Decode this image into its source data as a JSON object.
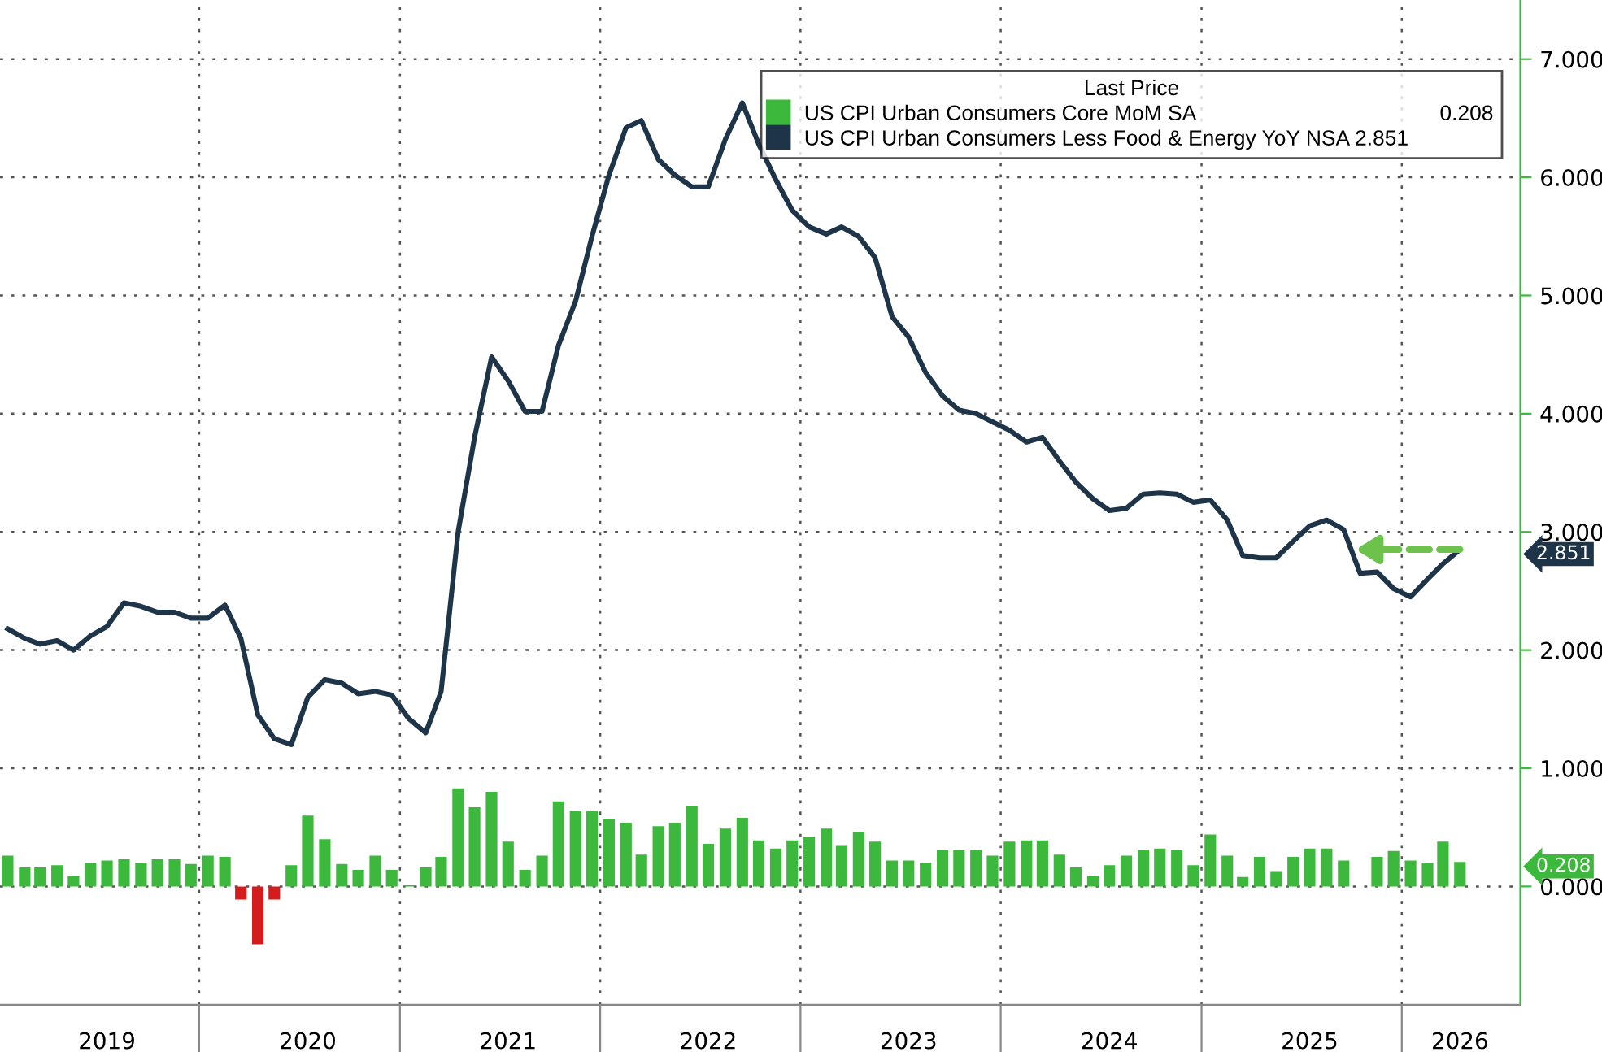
{
  "chart_data": {
    "type": "bar",
    "legend_title": "Last Price",
    "legend": "top right",
    "grid": true,
    "x": [
      "2019-01",
      "2019-02",
      "2019-03",
      "2019-04",
      "2019-05",
      "2019-06",
      "2019-07",
      "2019-08",
      "2019-09",
      "2019-10",
      "2019-11",
      "2019-12",
      "2020-01",
      "2020-02",
      "2020-03",
      "2020-04",
      "2020-05",
      "2020-06",
      "2020-07",
      "2020-08",
      "2020-09",
      "2020-10",
      "2020-11",
      "2020-12",
      "2021-01",
      "2021-02",
      "2021-03",
      "2021-04",
      "2021-05",
      "2021-06",
      "2021-07",
      "2021-08",
      "2021-09",
      "2021-10",
      "2021-11",
      "2021-12",
      "2022-01",
      "2022-02",
      "2022-03",
      "2022-04",
      "2022-05",
      "2022-06",
      "2022-07",
      "2022-08",
      "2022-09",
      "2022-10",
      "2022-11",
      "2022-12",
      "2023-01",
      "2023-02",
      "2023-03",
      "2023-04",
      "2023-05",
      "2023-06",
      "2023-07",
      "2023-08",
      "2023-09",
      "2023-10",
      "2023-11",
      "2023-12",
      "2024-01",
      "2024-02",
      "2024-03",
      "2024-04",
      "2024-05",
      "2024-06",
      "2024-07",
      "2024-08",
      "2024-09",
      "2024-10",
      "2024-11",
      "2024-12",
      "2025-01",
      "2025-02",
      "2025-03",
      "2025-04",
      "2025-05",
      "2025-06",
      "2025-07",
      "2025-08",
      "2025-09",
      "2025-10",
      "2025-11",
      "2025-12",
      "2026-01",
      "2026-02",
      "2026-03",
      "2026-04"
    ],
    "series": [
      {
        "name": "US CPI Urban Consumers Core MoM SA                                         0.208",
        "color": "#3cb83c",
        "values": [
          0.26,
          0.16,
          0.16,
          0.18,
          0.09,
          0.2,
          0.22,
          0.23,
          0.2,
          0.23,
          0.23,
          0.19,
          0.26,
          0.25,
          -0.11,
          -0.49,
          -0.11,
          0.18,
          0.6,
          0.4,
          0.19,
          0.14,
          0.26,
          0.14,
          0.01,
          0.16,
          0.25,
          0.83,
          0.67,
          0.8,
          0.38,
          0.14,
          0.26,
          0.72,
          0.64,
          0.64,
          0.57,
          0.54,
          0.27,
          0.51,
          0.54,
          0.68,
          0.36,
          0.49,
          0.58,
          0.39,
          0.32,
          0.39,
          0.42,
          0.49,
          0.35,
          0.46,
          0.38,
          0.22,
          0.22,
          0.2,
          0.31,
          0.31,
          0.31,
          0.26,
          0.38,
          0.39,
          0.39,
          0.27,
          0.16,
          0.09,
          0.18,
          0.26,
          0.31,
          0.32,
          0.31,
          0.18,
          0.44,
          0.26,
          0.08,
          0.25,
          0.13,
          0.25,
          0.32,
          0.32,
          0.22,
          null,
          0.25,
          0.3,
          0.22,
          0.2,
          0.38,
          0.208
        ],
        "colors": [
          "#3cb83c",
          "#3cb83c",
          "#3cb83c",
          "#3cb83c",
          "#3cb83c",
          "#3cb83c",
          "#3cb83c",
          "#3cb83c",
          "#3cb83c",
          "#3cb83c",
          "#3cb83c",
          "#3cb83c",
          "#3cb83c",
          "#3cb83c",
          "#d41c1c",
          "#d41c1c",
          "#d41c1c",
          "#3cb83c",
          "#3cb83c",
          "#3cb83c",
          "#3cb83c",
          "#3cb83c",
          "#3cb83c",
          "#3cb83c",
          "#3cb83c",
          "#3cb83c",
          "#3cb83c",
          "#3cb83c",
          "#3cb83c",
          "#3cb83c",
          "#3cb83c",
          "#3cb83c",
          "#3cb83c",
          "#3cb83c",
          "#3cb83c",
          "#3cb83c",
          "#3cb83c",
          "#3cb83c",
          "#3cb83c",
          "#3cb83c",
          "#3cb83c",
          "#3cb83c",
          "#3cb83c",
          "#3cb83c",
          "#3cb83c",
          "#3cb83c",
          "#3cb83c",
          "#3cb83c",
          "#3cb83c",
          "#3cb83c",
          "#3cb83c",
          "#3cb83c",
          "#3cb83c",
          "#3cb83c",
          "#3cb83c",
          "#3cb83c",
          "#3cb83c",
          "#3cb83c",
          "#3cb83c",
          "#3cb83c",
          "#3cb83c",
          "#3cb83c",
          "#3cb83c",
          "#3cb83c",
          "#3cb83c",
          "#3cb83c",
          "#3cb83c",
          "#3cb83c",
          "#3cb83c",
          "#3cb83c",
          "#3cb83c",
          "#3cb83c",
          "#3cb83c",
          "#3cb83c",
          "#3cb83c",
          "#3cb83c",
          "#3cb83c",
          "#3cb83c",
          "#3cb83c",
          "#3cb83c",
          "#3cb83c",
          null,
          "#3cb83c",
          "#3cb83c",
          "#3cb83c",
          "#3cb83c",
          "#3cb83c",
          "#3cb83c"
        ]
      },
      {
        "name": "US CPI Urban Consumers Less Food & Energy YoY NSA 2.851",
        "type": "line",
        "color": "#1e3448",
        "marker": "none",
        "line_style": "solid",
        "values": [
          2.18,
          2.1,
          2.05,
          2.08,
          2.0,
          2.12,
          2.2,
          2.4,
          2.37,
          2.32,
          2.32,
          2.27,
          2.27,
          2.38,
          2.1,
          1.45,
          1.25,
          1.2,
          1.6,
          1.75,
          1.72,
          1.63,
          1.65,
          1.62,
          1.42,
          1.3,
          1.65,
          3.0,
          3.8,
          4.48,
          4.28,
          4.02,
          4.02,
          4.58,
          4.95,
          5.5,
          6.02,
          6.42,
          6.48,
          6.15,
          6.02,
          5.92,
          5.92,
          6.32,
          6.63,
          6.28,
          5.98,
          5.72,
          5.58,
          5.52,
          5.58,
          5.5,
          5.32,
          4.82,
          4.65,
          4.35,
          4.15,
          4.03,
          4.0,
          3.93,
          3.86,
          3.76,
          3.8,
          3.6,
          3.42,
          3.28,
          3.18,
          3.2,
          3.32,
          3.33,
          3.32,
          3.25,
          3.27,
          3.1,
          2.8,
          2.78,
          2.78,
          2.92,
          3.05,
          3.1,
          3.02,
          2.65,
          2.66,
          2.52,
          2.45,
          2.6,
          2.73,
          2.851
        ]
      }
    ],
    "annotations": [
      "0.208",
      "2.851"
    ],
    "xlim": [
      "2018-12-18",
      "2026-07-20"
    ],
    "xticks": [
      {
        "value": "2019-12-16",
        "label": null
      },
      {
        "value": "2020-12-16",
        "label": null
      },
      {
        "value": "2021-12-16",
        "label": null
      },
      {
        "value": "2022-12-16",
        "label": null
      },
      {
        "value": "2023-12-16",
        "label": null
      },
      {
        "value": "2024-12-16",
        "label": null
      },
      {
        "value": "2025-12-16",
        "label": null
      },
      {
        "value": "2019-07-01",
        "label": "2019"
      },
      {
        "value": "2020-07-01",
        "label": "2020"
      },
      {
        "value": "2021-07-01",
        "label": "2021"
      },
      {
        "value": "2022-07-01",
        "label": "2022"
      },
      {
        "value": "2023-07-01",
        "label": "2023"
      },
      {
        "value": "2024-07-01",
        "label": "2024"
      },
      {
        "value": "2025-07-01",
        "label": "2025"
      },
      {
        "value": "2026-04-01",
        "label": "2026"
      }
    ],
    "ylim": [
      -1.0,
      7.5
    ],
    "yticks": [
      {
        "value": 0,
        "label": "0.000"
      },
      {
        "value": 1,
        "label": "1.000"
      },
      {
        "value": 2,
        "label": "2.000"
      },
      {
        "value": 3,
        "label": "3.000"
      },
      {
        "value": 4,
        "label": "4.000"
      },
      {
        "value": 5,
        "label": "5.000"
      },
      {
        "value": 6,
        "label": "6.000"
      },
      {
        "value": 7,
        "label": "7.000"
      }
    ]
  }
}
